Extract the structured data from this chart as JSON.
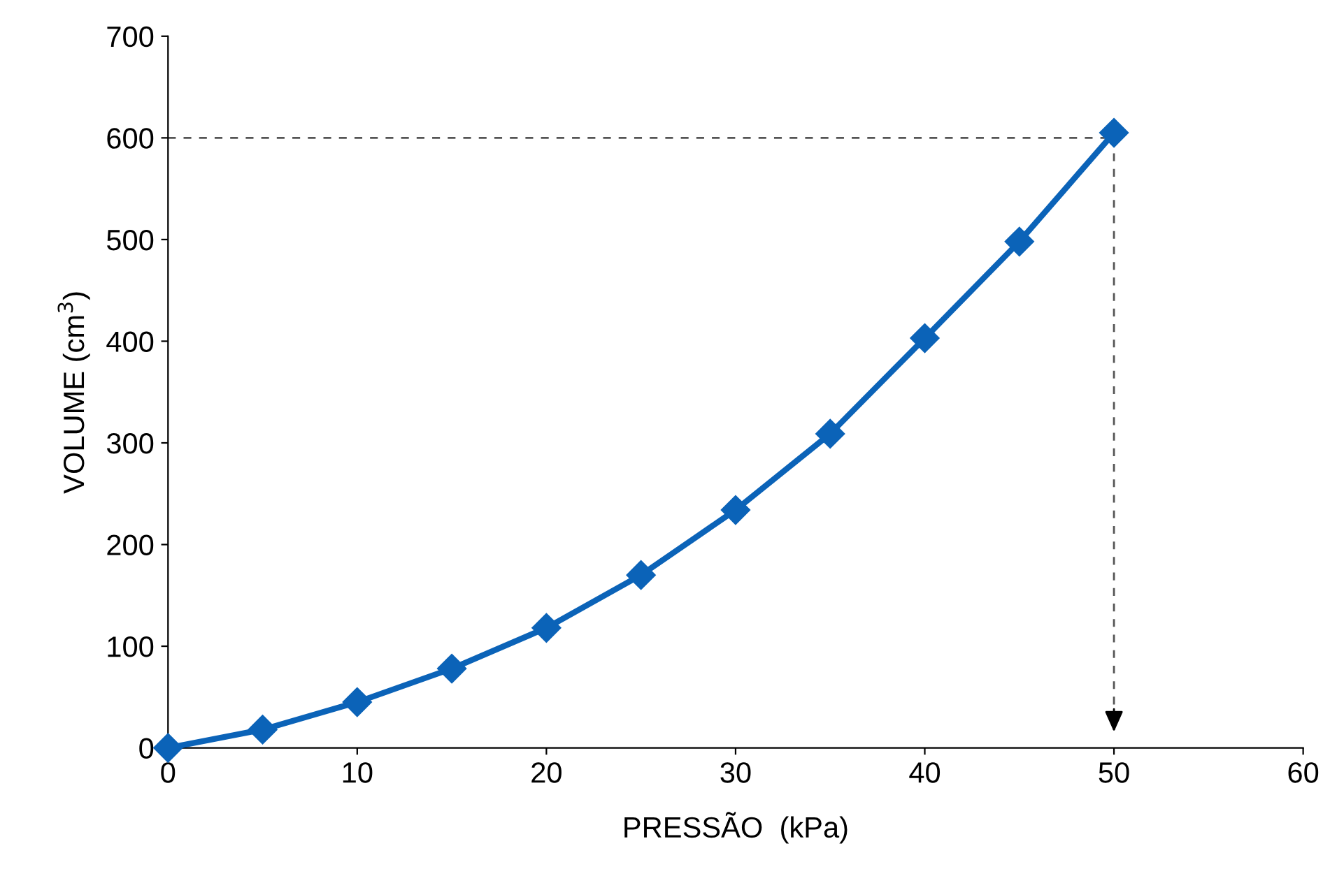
{
  "chart_data": {
    "type": "line",
    "xlabel": "PRESSÃO  (kPa)",
    "ylabel": "VOLUME (cm$^{3}$)",
    "x": [
      0,
      5,
      10,
      15,
      20,
      25,
      30,
      35,
      40,
      45,
      50
    ],
    "series": [
      {
        "color": "#0b63b8",
        "values": [
          0,
          18,
          45,
          78,
          118,
          170,
          234,
          309,
          403,
          498,
          605
        ]
      }
    ],
    "xlim": [
      0,
      60
    ],
    "xticks": [
      0,
      10,
      20,
      30,
      40,
      50,
      60
    ],
    "ylim": [
      0,
      700
    ],
    "yticks": [
      0,
      100,
      200,
      300,
      400,
      500,
      600,
      700
    ],
    "grid": false,
    "marker": "diamond",
    "line_style": "solid",
    "ref_lines": [
      {
        "axis": "y",
        "value": 600,
        "color": "#555555",
        "line_style": "dashed"
      },
      {
        "axis": "x",
        "value": 50,
        "color": "#555555",
        "line_style": "dashed"
      }
    ]
  }
}
